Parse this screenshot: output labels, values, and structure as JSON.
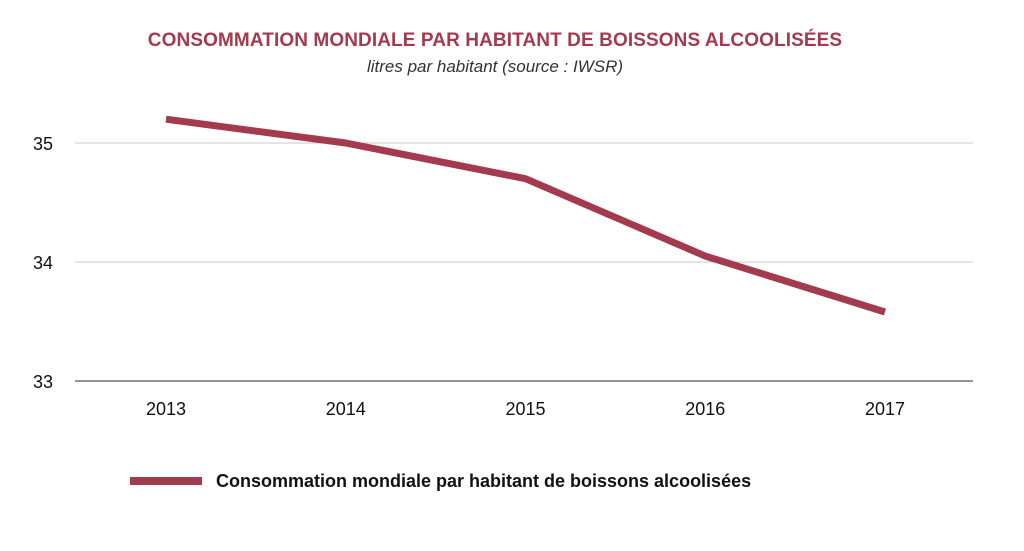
{
  "chart_data": {
    "type": "line",
    "title": "CONSOMMATION MONDIALE PAR HABITANT DE BOISSONS ALCOOLISÉES",
    "subtitle": "litres par habitant (source : IWSR)",
    "xlabel": "",
    "ylabel": "",
    "categories": [
      "2013",
      "2014",
      "2015",
      "2016",
      "2017"
    ],
    "series": [
      {
        "name": "Consommation mondiale par habitant de boissons alcoolisées",
        "values": [
          35.2,
          35.0,
          34.7,
          34.05,
          33.58
        ],
        "color": "#a33a4e"
      }
    ],
    "ylim": [
      33,
      35.5
    ],
    "yticks": [
      "33",
      "34",
      "35"
    ],
    "grid": true,
    "legend_position": "bottom-left"
  }
}
